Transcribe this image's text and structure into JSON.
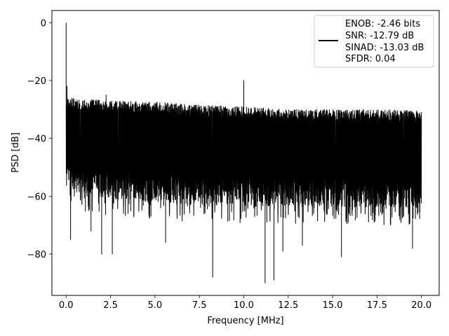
{
  "chart_data": {
    "type": "line",
    "xlabel": "Frequency [MHz]",
    "ylabel": "PSD [dB]",
    "xlim": [
      -0.8,
      21.0
    ],
    "ylim": [
      -94.3,
      4.2
    ],
    "xticks": [
      0.0,
      2.5,
      5.0,
      7.5,
      10.0,
      12.5,
      15.0,
      17.5,
      20.0
    ],
    "xtick_labels": [
      "0.0",
      "2.5",
      "5.0",
      "7.5",
      "10.0",
      "12.5",
      "15.0",
      "17.5",
      "20.0"
    ],
    "yticks": [
      0,
      -20,
      -40,
      -60,
      -80
    ],
    "ytick_labels": [
      "0",
      "−20",
      "−40",
      "−60",
      "−80"
    ],
    "grid": true,
    "legend_placement": "top-right",
    "legend": {
      "lines": [
        "ENOB: -2.46 bits",
        "SNR: -12.79 dB",
        "SINAD: -13.03 dB",
        "SFDR: 0.04"
      ]
    },
    "series": [
      {
        "color": "#000000",
        "x_range": [
          0.0,
          20.0
        ],
        "description_points": [
          {
            "x": 0.0,
            "y": 0.0
          },
          {
            "x": 0.05,
            "y": -22
          },
          {
            "x": 2.25,
            "y": -25
          },
          {
            "x": 10.0,
            "y": -20
          },
          {
            "x": 20.0,
            "y": -31
          }
        ],
        "upper_envelope": [
          [
            0.1,
            -26
          ],
          [
            2.5,
            -27
          ],
          [
            5.0,
            -27.5
          ],
          [
            7.5,
            -28.5
          ],
          [
            10.0,
            -29
          ],
          [
            12.5,
            -30
          ],
          [
            15.0,
            -30
          ],
          [
            17.5,
            -30
          ],
          [
            20.0,
            -30.5
          ]
        ],
        "lower_envelope": [
          [
            0.1,
            -58
          ],
          [
            2.5,
            -61
          ],
          [
            5.0,
            -62
          ],
          [
            7.5,
            -63
          ],
          [
            10.0,
            -63.5
          ],
          [
            12.5,
            -63.5
          ],
          [
            15.0,
            -63.5
          ],
          [
            17.5,
            -64
          ],
          [
            20.0,
            -64
          ]
        ],
        "deep_dips": [
          {
            "x": 0.25,
            "y": -75
          },
          {
            "x": 1.4,
            "y": -72
          },
          {
            "x": 2.0,
            "y": -80
          },
          {
            "x": 2.6,
            "y": -80
          },
          {
            "x": 5.6,
            "y": -76
          },
          {
            "x": 8.25,
            "y": -88
          },
          {
            "x": 11.2,
            "y": -90
          },
          {
            "x": 11.7,
            "y": -89
          },
          {
            "x": 12.2,
            "y": -79
          },
          {
            "x": 15.5,
            "y": -81
          },
          {
            "x": 13.3,
            "y": -77
          },
          {
            "x": 19.5,
            "y": -78
          }
        ]
      }
    ]
  }
}
